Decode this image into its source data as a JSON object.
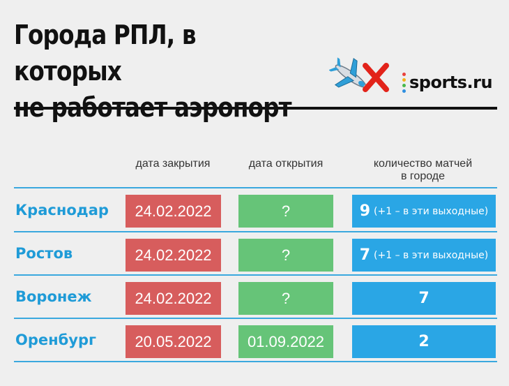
{
  "header": {
    "title_line1": "Города РПЛ, в которых",
    "title_line2": "не работает аэропорт",
    "logo_text": "sports.ru",
    "logo_dot_colors": [
      "#e9413c",
      "#f3b21a",
      "#48b84c",
      "#2f8fe0",
      "#9b4fd1"
    ],
    "emoji_icons": [
      "airplane-icon",
      "cross-mark-icon"
    ]
  },
  "table": {
    "columns": {
      "closing": "дата закрытия",
      "opening": "дата открытия",
      "matches_line1": "количество матчей",
      "matches_line2": "в городе"
    },
    "rows": [
      {
        "city": "Краснодар",
        "closed": "24.02.2022",
        "opened": "?",
        "matches": "9",
        "note": "(+1 – в эти выходные)"
      },
      {
        "city": "Ростов",
        "closed": "24.02.2022",
        "opened": "?",
        "matches": "7",
        "note": "(+1 – в эти выходные)"
      },
      {
        "city": "Воронеж",
        "closed": "24.02.2022",
        "opened": "?",
        "matches": "7",
        "note": ""
      },
      {
        "city": "Оренбург",
        "closed": "20.05.2022",
        "opened": "01.09.2022",
        "matches": "2",
        "note": ""
      }
    ],
    "colors": {
      "closed": "#d75d5d",
      "opened": "#66c478",
      "matches": "#2aa6e5",
      "city": "#1f9bd7"
    }
  }
}
